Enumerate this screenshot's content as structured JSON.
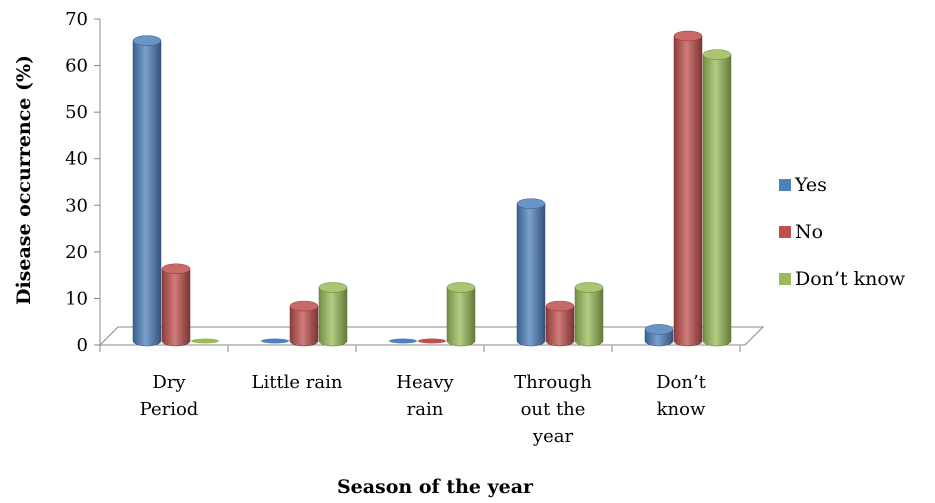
{
  "chart_data": {
    "type": "bar",
    "style": "3d-cylinder",
    "categories": [
      [
        "Dry",
        "Period"
      ],
      [
        "Little rain"
      ],
      [
        "Heavy",
        "rain"
      ],
      [
        "Through",
        "out the",
        "year"
      ],
      [
        "Don’t",
        "know"
      ]
    ],
    "series": [
      {
        "name": "Yes",
        "color": "#4f81bd",
        "values": [
          66,
          0,
          0,
          31,
          4
        ]
      },
      {
        "name": "No",
        "color": "#c0504d",
        "values": [
          17,
          9,
          0,
          9,
          67
        ]
      },
      {
        "name": "Don’t know",
        "color": "#9bbb59",
        "values": [
          0,
          13,
          13,
          13,
          63
        ]
      }
    ],
    "ylim": [
      0,
      70
    ],
    "yticks": [
      "0",
      "10",
      "20",
      "30",
      "40",
      "50",
      "60",
      "70"
    ],
    "ylabel": "Disease occurrence (%)",
    "xlabel": "Season of the year",
    "legend_position": "right",
    "grid": false
  }
}
